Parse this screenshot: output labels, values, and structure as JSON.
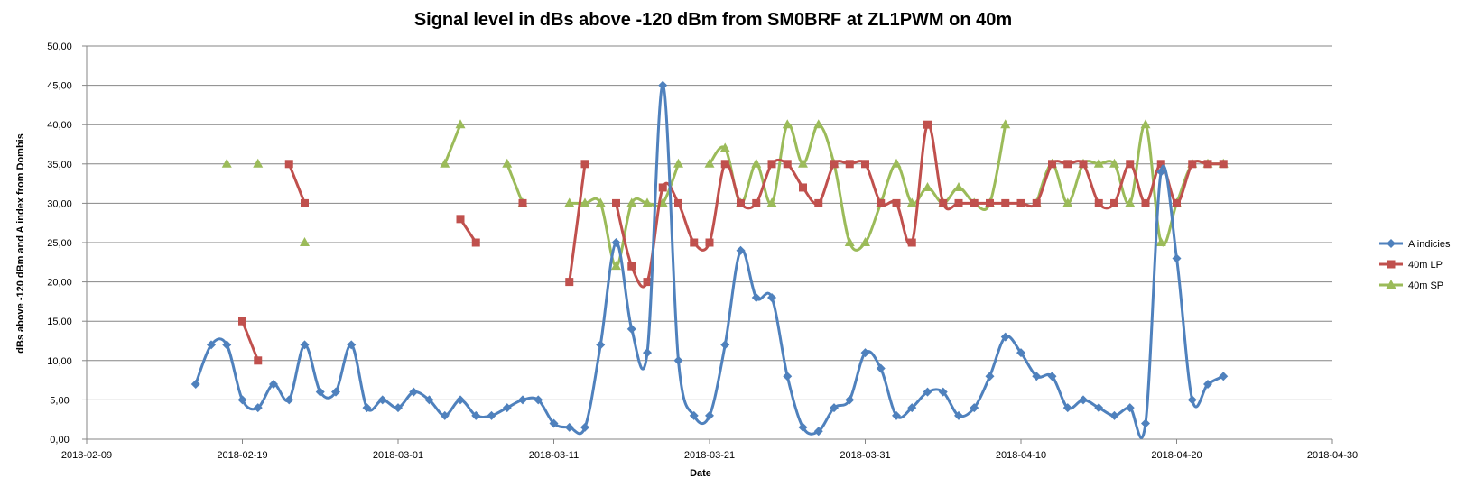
{
  "chart_data": {
    "type": "line",
    "title": "Signal level in dBs above -120 dBm from SM0BRF  at ZL1PWM on 40m",
    "xlabel": "Date",
    "ylabel": "dBs above -120 dBm and A index from Dombis",
    "xlim": [
      "2018-02-09",
      "2018-04-30"
    ],
    "ylim": [
      0,
      50
    ],
    "x_ticks": [
      "2018-02-09",
      "2018-02-19",
      "2018-03-01",
      "2018-03-11",
      "2018-03-21",
      "2018-03-31",
      "2018-04-10",
      "2018-04-20",
      "2018-04-30"
    ],
    "y_ticks": [
      "0,00",
      "5,00",
      "10,00",
      "15,00",
      "20,00",
      "25,00",
      "30,00",
      "35,00",
      "40,00",
      "45,00",
      "50,00"
    ],
    "grid": "horizontal",
    "legend_position": "right",
    "series": [
      {
        "name": "A indicies",
        "color": "#4f81bd",
        "marker": "diamond",
        "points": [
          [
            "2018-02-16",
            7
          ],
          [
            "2018-02-17",
            12
          ],
          [
            "2018-02-18",
            12
          ],
          [
            "2018-02-19",
            5
          ],
          [
            "2018-02-20",
            4
          ],
          [
            "2018-02-21",
            7
          ],
          [
            "2018-02-22",
            5
          ],
          [
            "2018-02-23",
            12
          ],
          [
            "2018-02-24",
            6
          ],
          [
            "2018-02-25",
            6
          ],
          [
            "2018-02-26",
            12
          ],
          [
            "2018-02-27",
            4
          ],
          [
            "2018-02-28",
            5
          ],
          [
            "2018-03-01",
            4
          ],
          [
            "2018-03-02",
            6
          ],
          [
            "2018-03-03",
            5
          ],
          [
            "2018-03-04",
            3
          ],
          [
            "2018-03-05",
            5
          ],
          [
            "2018-03-06",
            3
          ],
          [
            "2018-03-07",
            3
          ],
          [
            "2018-03-08",
            4
          ],
          [
            "2018-03-09",
            5
          ],
          [
            "2018-03-10",
            5
          ],
          [
            "2018-03-11",
            2
          ],
          [
            "2018-03-12",
            1.5
          ],
          [
            "2018-03-13",
            1.5
          ],
          [
            "2018-03-14",
            12
          ],
          [
            "2018-03-15",
            25
          ],
          [
            "2018-03-16",
            14
          ],
          [
            "2018-03-17",
            11
          ],
          [
            "2018-03-18",
            45
          ],
          [
            "2018-03-19",
            10
          ],
          [
            "2018-03-20",
            3
          ],
          [
            "2018-03-21",
            3
          ],
          [
            "2018-03-22",
            12
          ],
          [
            "2018-03-23",
            24
          ],
          [
            "2018-03-24",
            18
          ],
          [
            "2018-03-25",
            18
          ],
          [
            "2018-03-26",
            8
          ],
          [
            "2018-03-27",
            1.5
          ],
          [
            "2018-03-28",
            1
          ],
          [
            "2018-03-29",
            4
          ],
          [
            "2018-03-30",
            5
          ],
          [
            "2018-03-31",
            11
          ],
          [
            "2018-04-01",
            9
          ],
          [
            "2018-04-02",
            3
          ],
          [
            "2018-04-03",
            4
          ],
          [
            "2018-04-04",
            6
          ],
          [
            "2018-04-05",
            6
          ],
          [
            "2018-04-06",
            3
          ],
          [
            "2018-04-07",
            4
          ],
          [
            "2018-04-08",
            8
          ],
          [
            "2018-04-09",
            13
          ],
          [
            "2018-04-10",
            11
          ],
          [
            "2018-04-11",
            8
          ],
          [
            "2018-04-12",
            8
          ],
          [
            "2018-04-13",
            4
          ],
          [
            "2018-04-14",
            5
          ],
          [
            "2018-04-15",
            4
          ],
          [
            "2018-04-16",
            3
          ],
          [
            "2018-04-17",
            4
          ],
          [
            "2018-04-18",
            2
          ],
          [
            "2018-04-19",
            34
          ],
          [
            "2018-04-20",
            23
          ],
          [
            "2018-04-21",
            5
          ],
          [
            "2018-04-22",
            7
          ],
          [
            "2018-04-23",
            8
          ]
        ]
      },
      {
        "name": "40m LP",
        "color": "#c0504d",
        "marker": "square",
        "points": [
          [
            "2018-02-19",
            15
          ],
          [
            "2018-02-20",
            10
          ],
          null,
          [
            "2018-02-22",
            35
          ],
          [
            "2018-02-23",
            30
          ],
          null,
          [
            "2018-03-05",
            28
          ],
          [
            "2018-03-06",
            25
          ],
          null,
          [
            "2018-03-09",
            30
          ],
          null,
          [
            "2018-03-12",
            20
          ],
          [
            "2018-03-13",
            35
          ],
          null,
          [
            "2018-03-15",
            30
          ],
          [
            "2018-03-16",
            22
          ],
          [
            "2018-03-17",
            20
          ],
          [
            "2018-03-18",
            32
          ],
          [
            "2018-03-19",
            30
          ],
          [
            "2018-03-20",
            25
          ],
          [
            "2018-03-21",
            25
          ],
          [
            "2018-03-22",
            35
          ],
          [
            "2018-03-23",
            30
          ],
          [
            "2018-03-24",
            30
          ],
          [
            "2018-03-25",
            35
          ],
          [
            "2018-03-26",
            35
          ],
          [
            "2018-03-27",
            32
          ],
          [
            "2018-03-28",
            30
          ],
          [
            "2018-03-29",
            35
          ],
          [
            "2018-03-30",
            35
          ],
          [
            "2018-03-31",
            35
          ],
          [
            "2018-04-01",
            30
          ],
          [
            "2018-04-02",
            30
          ],
          [
            "2018-04-03",
            25
          ],
          [
            "2018-04-04",
            40
          ],
          [
            "2018-04-05",
            30
          ],
          [
            "2018-04-06",
            30
          ],
          [
            "2018-04-07",
            30
          ],
          [
            "2018-04-08",
            30
          ],
          [
            "2018-04-09",
            30
          ],
          [
            "2018-04-10",
            30
          ],
          [
            "2018-04-11",
            30
          ],
          [
            "2018-04-12",
            35
          ],
          [
            "2018-04-13",
            35
          ],
          [
            "2018-04-14",
            35
          ],
          [
            "2018-04-15",
            30
          ],
          [
            "2018-04-16",
            30
          ],
          [
            "2018-04-17",
            35
          ],
          [
            "2018-04-18",
            30
          ],
          [
            "2018-04-19",
            35
          ],
          [
            "2018-04-20",
            30
          ],
          [
            "2018-04-21",
            35
          ],
          [
            "2018-04-22",
            35
          ],
          [
            "2018-04-23",
            35
          ]
        ]
      },
      {
        "name": "40m SP",
        "color": "#9bbb59",
        "marker": "triangle",
        "points": [
          [
            "2018-02-18",
            35
          ],
          null,
          [
            "2018-02-20",
            35
          ],
          null,
          [
            "2018-02-23",
            25
          ],
          null,
          [
            "2018-03-04",
            35
          ],
          [
            "2018-03-05",
            40
          ],
          null,
          [
            "2018-03-08",
            35
          ],
          [
            "2018-03-09",
            30
          ],
          null,
          [
            "2018-03-12",
            30
          ],
          [
            "2018-03-13",
            30
          ],
          [
            "2018-03-14",
            30
          ],
          [
            "2018-03-15",
            22
          ],
          [
            "2018-03-16",
            30
          ],
          [
            "2018-03-17",
            30
          ],
          [
            "2018-03-18",
            30
          ],
          [
            "2018-03-19",
            35
          ],
          null,
          [
            "2018-03-21",
            35
          ],
          [
            "2018-03-22",
            37
          ],
          [
            "2018-03-23",
            30
          ],
          [
            "2018-03-24",
            35
          ],
          [
            "2018-03-25",
            30
          ],
          [
            "2018-03-26",
            40
          ],
          [
            "2018-03-27",
            35
          ],
          [
            "2018-03-28",
            40
          ],
          [
            "2018-03-29",
            35
          ],
          [
            "2018-03-30",
            25
          ],
          [
            "2018-03-31",
            25
          ],
          [
            "2018-04-01",
            30
          ],
          [
            "2018-04-02",
            35
          ],
          [
            "2018-04-03",
            30
          ],
          [
            "2018-04-04",
            32
          ],
          [
            "2018-04-05",
            30
          ],
          [
            "2018-04-06",
            32
          ],
          [
            "2018-04-07",
            30
          ],
          [
            "2018-04-08",
            30
          ],
          [
            "2018-04-09",
            40
          ],
          null,
          [
            "2018-04-11",
            30
          ],
          [
            "2018-04-12",
            35
          ],
          [
            "2018-04-13",
            30
          ],
          [
            "2018-04-14",
            35
          ],
          [
            "2018-04-15",
            35
          ],
          [
            "2018-04-16",
            35
          ],
          [
            "2018-04-17",
            30
          ],
          [
            "2018-04-18",
            40
          ],
          [
            "2018-04-19",
            25
          ],
          [
            "2018-04-20",
            30
          ],
          [
            "2018-04-21",
            35
          ],
          [
            "2018-04-22",
            35
          ],
          [
            "2018-04-23",
            35
          ]
        ]
      }
    ]
  }
}
